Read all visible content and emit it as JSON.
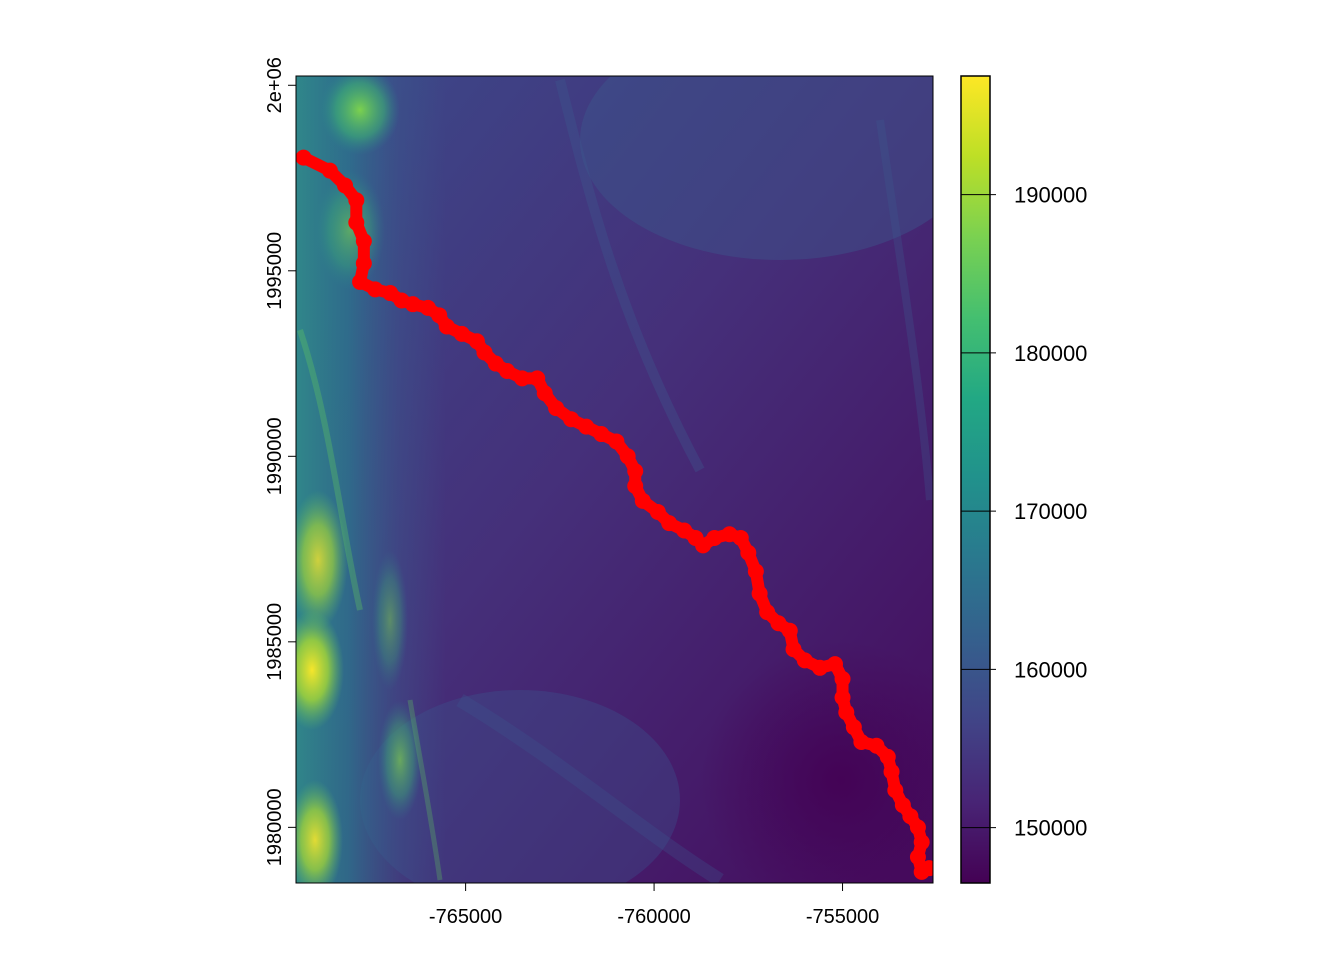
{
  "chart_data": {
    "type": "heatmap",
    "title": "",
    "xlabel": "",
    "ylabel": "",
    "xlim": [
      -769500,
      -752600
    ],
    "ylim": [
      1978500,
      2000250
    ],
    "x_ticks": [
      {
        "value": -765000,
        "label": "-765000"
      },
      {
        "value": -760000,
        "label": "-760000"
      },
      {
        "value": -755000,
        "label": "-755000"
      }
    ],
    "y_ticks": [
      {
        "value": 1980000,
        "label": "1980000"
      },
      {
        "value": 1985000,
        "label": "1985000"
      },
      {
        "value": 1990000,
        "label": "1990000"
      },
      {
        "value": 1995000,
        "label": "1995000"
      },
      {
        "value": 2000000,
        "label": "2e+06"
      }
    ],
    "raster_value_range": [
      146500,
      197500
    ],
    "colormap": "viridis",
    "colorbar_ticks": [
      {
        "value": 150000,
        "label": "150000"
      },
      {
        "value": 160000,
        "label": "160000"
      },
      {
        "value": 170000,
        "label": "170000"
      },
      {
        "value": 180000,
        "label": "180000"
      },
      {
        "value": 190000,
        "label": "190000"
      }
    ],
    "path_color": "#ff0000",
    "path": [
      [
        -769300,
        1998050
      ],
      [
        -768600,
        1997700
      ],
      [
        -768200,
        1997300
      ],
      [
        -767900,
        1996900
      ],
      [
        -767900,
        1996300
      ],
      [
        -767700,
        1995800
      ],
      [
        -767700,
        1995200
      ],
      [
        -767800,
        1994700
      ],
      [
        -767400,
        1994500
      ],
      [
        -767000,
        1994400
      ],
      [
        -766700,
        1994200
      ],
      [
        -766400,
        1994100
      ],
      [
        -766000,
        1994000
      ],
      [
        -765700,
        1993800
      ],
      [
        -765500,
        1993500
      ],
      [
        -765100,
        1993300
      ],
      [
        -764700,
        1993100
      ],
      [
        -764500,
        1992800
      ],
      [
        -764200,
        1992500
      ],
      [
        -763900,
        1992300
      ],
      [
        -763500,
        1992100
      ],
      [
        -763100,
        1992100
      ],
      [
        -762900,
        1991700
      ],
      [
        -762600,
        1991300
      ],
      [
        -762200,
        1991000
      ],
      [
        -761800,
        1990800
      ],
      [
        -761400,
        1990600
      ],
      [
        -761000,
        1990400
      ],
      [
        -760700,
        1990000
      ],
      [
        -760500,
        1989600
      ],
      [
        -760500,
        1989200
      ],
      [
        -760300,
        1988800
      ],
      [
        -759900,
        1988500
      ],
      [
        -759600,
        1988200
      ],
      [
        -759200,
        1988000
      ],
      [
        -758900,
        1987800
      ],
      [
        -758700,
        1987600
      ],
      [
        -758400,
        1987800
      ],
      [
        -758000,
        1987900
      ],
      [
        -757700,
        1987800
      ],
      [
        -757500,
        1987400
      ],
      [
        -757300,
        1986900
      ],
      [
        -757200,
        1986300
      ],
      [
        -757000,
        1985800
      ],
      [
        -756700,
        1985500
      ],
      [
        -756400,
        1985300
      ],
      [
        -756300,
        1984800
      ],
      [
        -756000,
        1984500
      ],
      [
        -755600,
        1984300
      ],
      [
        -755200,
        1984400
      ],
      [
        -755000,
        1984000
      ],
      [
        -755000,
        1983500
      ],
      [
        -754900,
        1983100
      ],
      [
        -754700,
        1982700
      ],
      [
        -754500,
        1982300
      ],
      [
        -754100,
        1982200
      ],
      [
        -753800,
        1981900
      ],
      [
        -753700,
        1981500
      ],
      [
        -753600,
        1981000
      ],
      [
        -753400,
        1980600
      ],
      [
        -753200,
        1980300
      ],
      [
        -753000,
        1980000
      ],
      [
        -752900,
        1979600
      ],
      [
        -753000,
        1979200
      ],
      [
        -752900,
        1978800
      ],
      [
        -752700,
        1978900
      ]
    ]
  }
}
